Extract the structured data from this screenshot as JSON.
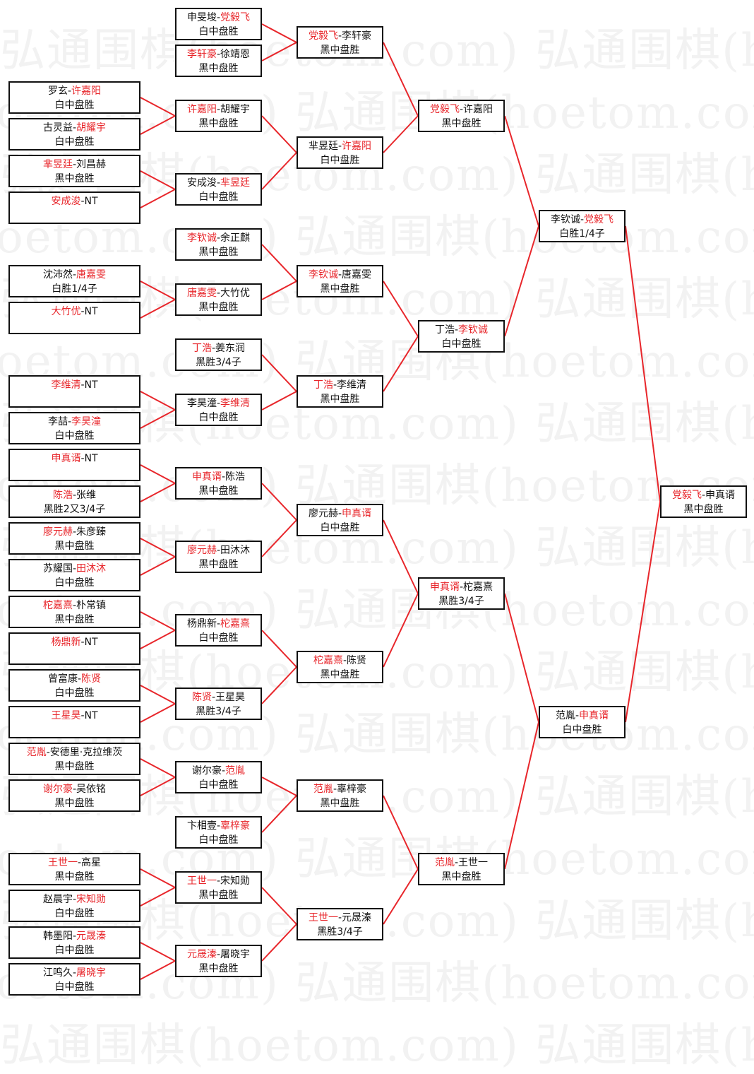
{
  "watermark": "弘通围棋(hoetom.com)",
  "colors": {
    "winner": "#e8262b",
    "line": "#e8262b",
    "border": "#111111"
  },
  "rounds": [
    [
      {
        "p1": "罗玄",
        "p2": "许嘉阳",
        "winner": 2,
        "result": "白中盘胜"
      },
      {
        "p1": "古灵益",
        "p2": "胡耀宇",
        "winner": 2,
        "result": "白中盘胜"
      },
      {
        "p1": "芈昱廷",
        "p2": "刘昌赫",
        "winner": 1,
        "result": "黑中盘胜"
      },
      {
        "p1": "安成浚",
        "p2": "NT",
        "winner": 1,
        "result": ""
      },
      {
        "p1": "沈沛然",
        "p2": "唐嘉雯",
        "winner": 2,
        "result": "白胜1/4子"
      },
      {
        "p1": "大竹优",
        "p2": "NT",
        "winner": 1,
        "result": ""
      },
      {
        "p1": "李维清",
        "p2": "NT",
        "winner": 1,
        "result": ""
      },
      {
        "p1": "李喆",
        "p2": "李昊潼",
        "winner": 2,
        "result": "白中盘胜"
      },
      {
        "p1": "申真谞",
        "p2": "NT",
        "winner": 1,
        "result": ""
      },
      {
        "p1": "陈浩",
        "p2": "张维",
        "winner": 1,
        "result": "黑胜2又3/4子"
      },
      {
        "p1": "廖元赫",
        "p2": "朱彦臻",
        "winner": 1,
        "result": "黑中盘胜"
      },
      {
        "p1": "苏耀国",
        "p2": "田沐沐",
        "winner": 2,
        "result": "白中盘胜"
      },
      {
        "p1": "柁嘉熹",
        "p2": "朴常镇",
        "winner": 1,
        "result": "黑中盘胜"
      },
      {
        "p1": "杨鼎新",
        "p2": "NT",
        "winner": 1,
        "result": ""
      },
      {
        "p1": "曾富康",
        "p2": "陈贤",
        "winner": 2,
        "result": "白中盘胜"
      },
      {
        "p1": "王星昊",
        "p2": "NT",
        "winner": 1,
        "result": ""
      },
      {
        "p1": "范胤",
        "p2": "安德里·克拉维茨",
        "winner": 1,
        "result": "黑中盘胜"
      },
      {
        "p1": "谢尔豪",
        "p2": "吴依铭",
        "winner": 1,
        "result": "黑中盘胜"
      },
      {
        "p1": "王世一",
        "p2": "高星",
        "winner": 1,
        "result": "黑中盘胜"
      },
      {
        "p1": "赵晨宇",
        "p2": "宋知勋",
        "winner": 2,
        "result": "白中盘胜"
      },
      {
        "p1": "韩墨阳",
        "p2": "元晟溱",
        "winner": 2,
        "result": "白中盘胜"
      },
      {
        "p1": "江鸣久",
        "p2": "屠晓宇",
        "winner": 2,
        "result": "白中盘胜"
      }
    ],
    [
      {
        "p1": "申旻埈",
        "p2": "党毅飞",
        "winner": 2,
        "result": "白中盘胜"
      },
      {
        "p1": "李轩豪",
        "p2": "徐靖恩",
        "winner": 1,
        "result": "黑中盘胜"
      },
      {
        "p1": "许嘉阳",
        "p2": "胡耀宇",
        "winner": 1,
        "result": "黑中盘胜"
      },
      {
        "p1": "安成浚",
        "p2": "芈昱廷",
        "winner": 2,
        "result": "白中盘胜"
      },
      {
        "p1": "李钦诚",
        "p2": "余正麒",
        "winner": 1,
        "result": "黑中盘胜"
      },
      {
        "p1": "唐嘉雯",
        "p2": "大竹优",
        "winner": 1,
        "result": "黑中盘胜"
      },
      {
        "p1": "丁浩",
        "p2": "姜东润",
        "winner": 1,
        "result": "黑胜3/4子"
      },
      {
        "p1": "李昊潼",
        "p2": "李维清",
        "winner": 2,
        "result": "白中盘胜"
      },
      {
        "p1": "申真谞",
        "p2": "陈浩",
        "winner": 1,
        "result": "黑中盘胜"
      },
      {
        "p1": "廖元赫",
        "p2": "田沐沐",
        "winner": 1,
        "result": "黑中盘胜"
      },
      {
        "p1": "杨鼎新",
        "p2": "柁嘉熹",
        "winner": 2,
        "result": "白中盘胜"
      },
      {
        "p1": "陈贤",
        "p2": "王星昊",
        "winner": 1,
        "result": "黑胜3/4子"
      },
      {
        "p1": "谢尔豪",
        "p2": "范胤",
        "winner": 2,
        "result": "白中盘胜"
      },
      {
        "p1": "卞相壹",
        "p2": "辜梓豪",
        "winner": 2,
        "result": "白中盘胜"
      },
      {
        "p1": "王世一",
        "p2": "宋知勋",
        "winner": 1,
        "result": "黑中盘胜"
      },
      {
        "p1": "元晟溱",
        "p2": "屠晓宇",
        "winner": 1,
        "result": "黑中盘胜"
      }
    ],
    [
      {
        "p1": "党毅飞",
        "p2": "李轩豪",
        "winner": 1,
        "result": "黑中盘胜"
      },
      {
        "p1": "芈昱廷",
        "p2": "许嘉阳",
        "winner": 2,
        "result": "白中盘胜"
      },
      {
        "p1": "李钦诚",
        "p2": "唐嘉雯",
        "winner": 1,
        "result": "黑中盘胜"
      },
      {
        "p1": "丁浩",
        "p2": "李维清",
        "winner": 1,
        "result": "黑中盘胜"
      },
      {
        "p1": "廖元赫",
        "p2": "申真谞",
        "winner": 2,
        "result": "白中盘胜"
      },
      {
        "p1": "柁嘉熹",
        "p2": "陈贤",
        "winner": 1,
        "result": "黑中盘胜"
      },
      {
        "p1": "范胤",
        "p2": "辜梓豪",
        "winner": 1,
        "result": "黑中盘胜"
      },
      {
        "p1": "王世一",
        "p2": "元晟溱",
        "winner": 1,
        "result": "黑胜3/4子"
      }
    ],
    [
      {
        "p1": "党毅飞",
        "p2": "许嘉阳",
        "winner": 1,
        "result": "黑中盘胜"
      },
      {
        "p1": "丁浩",
        "p2": "李钦诚",
        "winner": 2,
        "result": "白中盘胜"
      },
      {
        "p1": "申真谞",
        "p2": "柁嘉熹",
        "winner": 1,
        "result": "黑胜3/4子"
      },
      {
        "p1": "范胤",
        "p2": "王世一",
        "winner": 1,
        "result": "黑中盘胜"
      }
    ],
    [
      {
        "p1": "李钦诚",
        "p2": "党毅飞",
        "winner": 2,
        "result": "白胜1/4子"
      },
      {
        "p1": "范胤",
        "p2": "申真谞",
        "winner": 2,
        "result": "白中盘胜"
      }
    ],
    [
      {
        "p1": "党毅飞",
        "p2": "申真谞",
        "winner": 1,
        "result": "黑中盘胜"
      }
    ]
  ]
}
